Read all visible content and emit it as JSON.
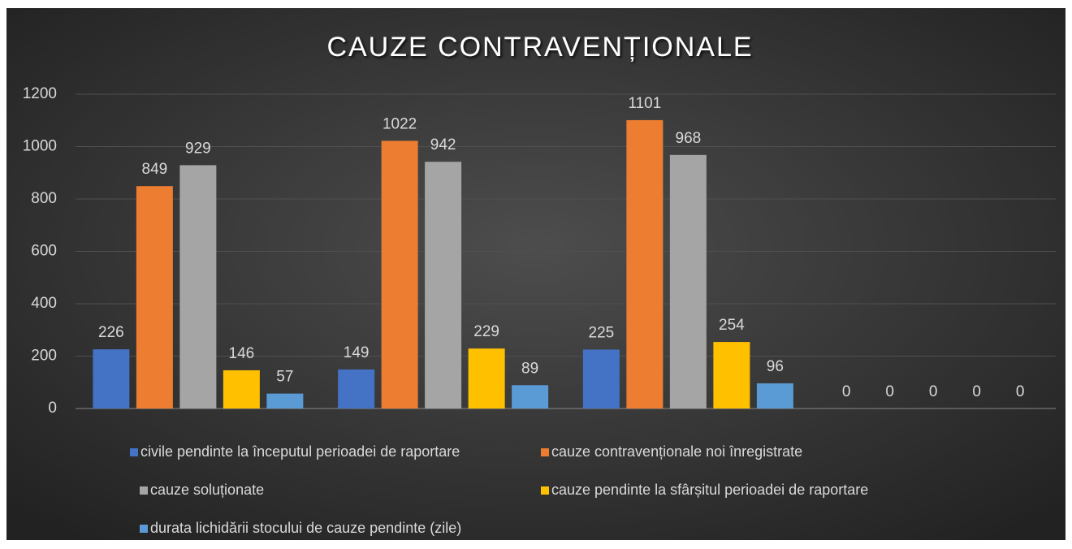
{
  "chart_data": {
    "type": "bar",
    "title": "CAUZE CONTRAVENȚIONALE",
    "categories": [
      null,
      null,
      null,
      null
    ],
    "series": [
      {
        "name": "civile pendinte la începutul perioadei de raportare",
        "color": "#4472c4",
        "values": [
          226,
          149,
          225,
          0
        ]
      },
      {
        "name": "cauze contravenționale noi înregistrate",
        "color": "#ed7d31",
        "values": [
          849,
          1022,
          1101,
          0
        ]
      },
      {
        "name": "cauze soluționate",
        "color": "#a5a5a5",
        "values": [
          929,
          942,
          968,
          0
        ]
      },
      {
        "name": "cauze pendinte la sfârșitul perioadei de raportare",
        "color": "#ffc000",
        "values": [
          146,
          229,
          254,
          0
        ]
      },
      {
        "name": "durata lichidării stocului de cauze pendinte (zile)",
        "color": "#5b9bd5",
        "values": [
          57,
          89,
          96,
          0
        ]
      }
    ],
    "ylim": [
      0,
      1200
    ],
    "yticks": [
      0,
      200,
      400,
      600,
      800,
      1000,
      1200
    ],
    "grid": true,
    "legend": "bottom"
  }
}
